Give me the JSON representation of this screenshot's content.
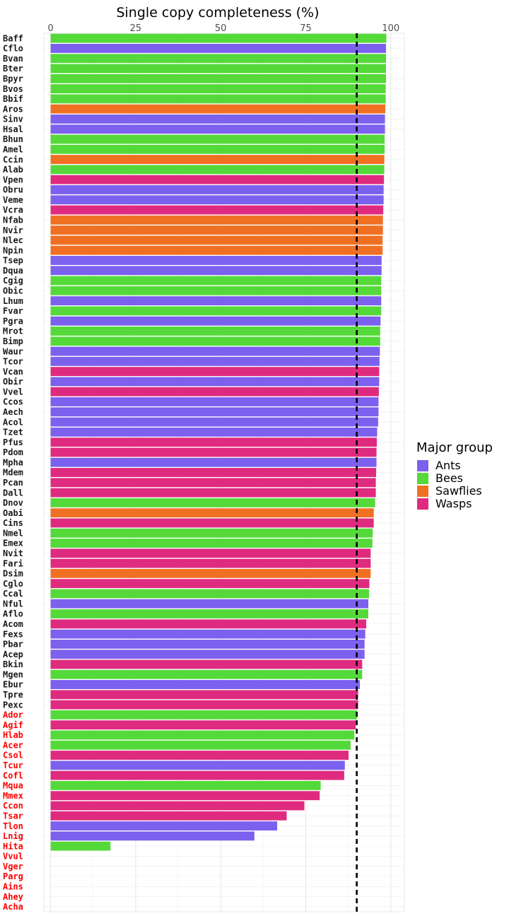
{
  "chart_data": {
    "type": "bar",
    "orientation": "horizontal",
    "title": "Single copy completeness (%)",
    "xlabel": "",
    "ylabel": "",
    "xlim": [
      -2,
      104
    ],
    "xticks": [
      0,
      25,
      50,
      75,
      100
    ],
    "x_axis_position": "top",
    "grid": true,
    "reference_line": {
      "value": 90,
      "style": "dashed",
      "color": "#000000"
    },
    "legend": {
      "title": "Major group",
      "placement": "right",
      "entries": [
        {
          "name": "Ants",
          "color": "#7B61EE"
        },
        {
          "name": "Bees",
          "color": "#55D93A"
        },
        {
          "name": "Sawflies",
          "color": "#F07023"
        },
        {
          "name": "Wasps",
          "color": "#DF2B7F"
        }
      ]
    },
    "label_colors": {
      "normal": "#1a1a1a",
      "flagged": "#FF0000"
    },
    "categories": [
      "Baff",
      "Cflo",
      "Bvan",
      "Bter",
      "Bpyr",
      "Bvos",
      "Bbif",
      "Aros",
      "Sinv",
      "Hsal",
      "Bhun",
      "Amel",
      "Ccin",
      "Alab",
      "Vpen",
      "Obru",
      "Veme",
      "Vcra",
      "Nfab",
      "Nvir",
      "Nlec",
      "Npin",
      "Tsep",
      "Dqua",
      "Cgig",
      "Obic",
      "Lhum",
      "Fvar",
      "Pgra",
      "Mrot",
      "Bimp",
      "Waur",
      "Tcor",
      "Vcan",
      "Obir",
      "Vvel",
      "Ccos",
      "Aech",
      "Acol",
      "Tzet",
      "Pfus",
      "Pdom",
      "Mpha",
      "Mdem",
      "Pcan",
      "Dall",
      "Dnov",
      "Oabi",
      "Cins",
      "Nmel",
      "Emex",
      "Nvit",
      "Fari",
      "Dsim",
      "Cglo",
      "Ccal",
      "Nful",
      "Aflo",
      "Acom",
      "Fexs",
      "Pbar",
      "Acep",
      "Bkin",
      "Mgen",
      "Ebur",
      "Tpre",
      "Pexc",
      "Ador",
      "Agif",
      "Hlab",
      "Acer",
      "Csol",
      "Tcur",
      "Cofl",
      "Mqua",
      "Mmex",
      "Ccon",
      "Tsar",
      "Tlon",
      "Lnig",
      "Hita",
      "Vvul",
      "Vger",
      "Parg",
      "Ains",
      "Ahey",
      "Acha"
    ],
    "values": [
      98.7,
      98.6,
      98.6,
      98.6,
      98.6,
      98.5,
      98.5,
      98.4,
      98.3,
      98.3,
      98.2,
      98.2,
      98.1,
      98.1,
      98.0,
      97.9,
      97.9,
      97.8,
      97.7,
      97.7,
      97.6,
      97.6,
      97.3,
      97.3,
      97.2,
      97.2,
      97.2,
      97.2,
      97.0,
      96.9,
      96.9,
      96.8,
      96.7,
      96.6,
      96.6,
      96.5,
      96.4,
      96.4,
      96.3,
      96.0,
      95.9,
      95.8,
      95.8,
      95.7,
      95.6,
      95.6,
      95.4,
      95.0,
      95.0,
      94.7,
      94.6,
      94.1,
      94.1,
      94.1,
      93.7,
      93.6,
      93.4,
      93.4,
      92.8,
      92.5,
      92.3,
      92.3,
      91.6,
      91.6,
      90.9,
      90.4,
      90.4,
      90.1,
      89.7,
      89.3,
      88.2,
      87.6,
      86.5,
      86.3,
      79.4,
      79.1,
      74.6,
      69.4,
      66.6,
      59.9,
      17.6,
      0,
      0,
      0,
      0,
      0,
      0
    ],
    "groups": [
      "Bees",
      "Ants",
      "Bees",
      "Bees",
      "Bees",
      "Bees",
      "Bees",
      "Sawflies",
      "Ants",
      "Ants",
      "Bees",
      "Bees",
      "Sawflies",
      "Bees",
      "Wasps",
      "Ants",
      "Ants",
      "Wasps",
      "Sawflies",
      "Sawflies",
      "Sawflies",
      "Sawflies",
      "Ants",
      "Ants",
      "Bees",
      "Bees",
      "Ants",
      "Bees",
      "Ants",
      "Bees",
      "Bees",
      "Ants",
      "Ants",
      "Wasps",
      "Ants",
      "Wasps",
      "Ants",
      "Ants",
      "Ants",
      "Ants",
      "Wasps",
      "Wasps",
      "Ants",
      "Wasps",
      "Wasps",
      "Wasps",
      "Bees",
      "Sawflies",
      "Wasps",
      "Bees",
      "Bees",
      "Wasps",
      "Wasps",
      "Sawflies",
      "Wasps",
      "Bees",
      "Ants",
      "Bees",
      "Wasps",
      "Ants",
      "Ants",
      "Ants",
      "Wasps",
      "Bees",
      "Ants",
      "Wasps",
      "Wasps",
      "Bees",
      "Wasps",
      "Bees",
      "Bees",
      "Wasps",
      "Ants",
      "Wasps",
      "Bees",
      "Wasps",
      "Wasps",
      "Wasps",
      "Ants",
      "Ants",
      "Bees",
      "",
      "",
      "",
      "",
      "",
      ""
    ],
    "flagged": [
      "Ador",
      "Agif",
      "Hlab",
      "Acer",
      "Csol",
      "Tcur",
      "Cofl",
      "Mqua",
      "Mmex",
      "Ccon",
      "Tsar",
      "Tlon",
      "Lnig",
      "Hita",
      "Vvul",
      "Vger",
      "Parg",
      "Ains",
      "Ahey",
      "Acha"
    ]
  }
}
